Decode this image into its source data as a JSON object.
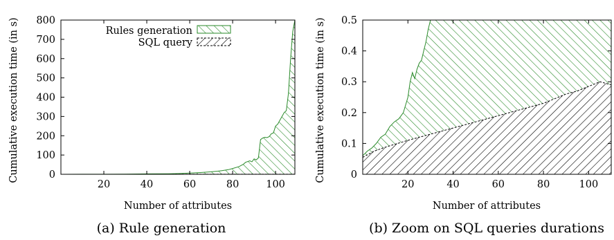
{
  "colors": {
    "green": "#2a8a2a",
    "black": "#000000"
  },
  "chart_data": [
    {
      "type": "area",
      "caption": "(a) Rule generation",
      "xlabel": "Number of attributes",
      "ylabel": "Cumulative execution time (in s)",
      "xlim": [
        0,
        109
      ],
      "ylim": [
        0,
        800
      ],
      "xticks": [
        20,
        40,
        60,
        80,
        100
      ],
      "yticks": [
        0,
        100,
        200,
        300,
        400,
        500,
        600,
        700,
        800
      ],
      "legend_position": "top-right",
      "series": [
        {
          "name": "Rules generation",
          "fill": "green-hatch",
          "x": [
            0,
            10,
            20,
            30,
            40,
            50,
            55,
            60,
            65,
            70,
            73,
            75,
            78,
            80,
            83,
            85,
            86,
            88,
            89,
            90,
            91,
            92,
            93,
            94,
            95,
            96,
            97,
            98,
            99,
            100,
            101,
            102,
            103,
            104,
            105,
            106,
            107,
            108,
            109
          ],
          "values": [
            0,
            0.2,
            0.5,
            1,
            2,
            3,
            4,
            6,
            9,
            13,
            16,
            19,
            24,
            30,
            40,
            52,
            62,
            70,
            65,
            80,
            75,
            85,
            180,
            188,
            192,
            190,
            195,
            210,
            215,
            250,
            260,
            280,
            300,
            320,
            330,
            420,
            600,
            740,
            800
          ]
        },
        {
          "name": "SQL query",
          "fill": "black-hatch",
          "x": [
            0,
            20,
            40,
            60,
            80,
            100,
            109
          ],
          "values": [
            0.05,
            0.1,
            0.15,
            0.19,
            0.23,
            0.28,
            0.3
          ]
        }
      ]
    },
    {
      "type": "area",
      "caption": "(b) Zoom on SQL queries durations",
      "xlabel": "Number of attributes",
      "ylabel": "Cumulative execution time (in s)",
      "xlim": [
        0,
        110
      ],
      "ylim": [
        0,
        0.5
      ],
      "xticks": [
        20,
        40,
        60,
        80,
        100
      ],
      "yticks": [
        0,
        0.1,
        0.2,
        0.3,
        0.4,
        0.5
      ],
      "series": [
        {
          "name": "Rules generation",
          "fill": "green-hatch",
          "x": [
            0,
            2,
            4,
            6,
            8,
            10,
            12,
            14,
            16,
            18,
            20,
            21,
            22,
            23,
            24,
            25,
            26,
            27,
            28,
            29,
            30,
            110
          ],
          "values": [
            0.06,
            0.075,
            0.085,
            0.1,
            0.12,
            0.13,
            0.155,
            0.17,
            0.18,
            0.2,
            0.25,
            0.3,
            0.33,
            0.31,
            0.34,
            0.36,
            0.37,
            0.4,
            0.43,
            0.47,
            0.5,
            0.5
          ]
        },
        {
          "name": "SQL query",
          "fill": "black-hatch",
          "x": [
            0,
            5,
            10,
            20,
            30,
            40,
            50,
            60,
            70,
            80,
            90,
            95,
            100,
            105,
            110
          ],
          "values": [
            0.055,
            0.075,
            0.088,
            0.11,
            0.13,
            0.15,
            0.17,
            0.19,
            0.21,
            0.23,
            0.26,
            0.27,
            0.285,
            0.3,
            0.29
          ]
        }
      ]
    }
  ]
}
